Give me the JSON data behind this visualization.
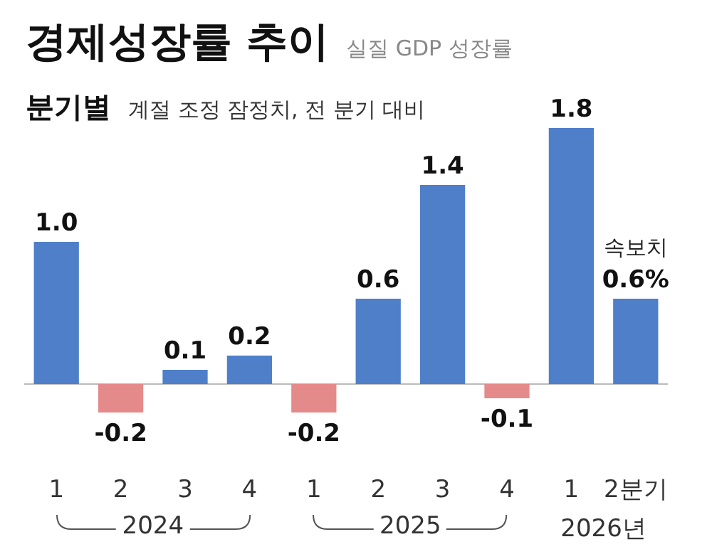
{
  "chart_data": {
    "type": "bar",
    "title": "경제성장률 추이",
    "subtitle": "실질 GDP 성장률",
    "categories": [
      "1",
      "2",
      "3",
      "4",
      "1",
      "2",
      "3",
      "4",
      "1",
      "2분기"
    ],
    "values": [
      1.0,
      -0.2,
      0.1,
      0.2,
      -0.2,
      0.6,
      1.4,
      -0.1,
      1.8,
      0.6
    ],
    "colors": [
      "#4f7fc8",
      "#e58a8a",
      "#4f7fc8",
      "#4f7fc8",
      "#e58a8a",
      "#4f7fc8",
      "#4f7fc8",
      "#e58a8a",
      "#4f7fc8",
      "#4f7fc8"
    ],
    "value_labels": [
      "1.0",
      "-0.2",
      "0.1",
      "0.2",
      "-0.2",
      "0.6",
      "1.4",
      "-0.1",
      "1.8",
      "0.6%"
    ],
    "annotations": [
      "분기별",
      "계절 조정 잠정치, 전 분기 대비",
      "2024",
      "2025",
      "2026년",
      {
        "text": "속보치",
        "x": "2분기",
        "y": 0.6
      }
    ],
    "grid": false
  }
}
